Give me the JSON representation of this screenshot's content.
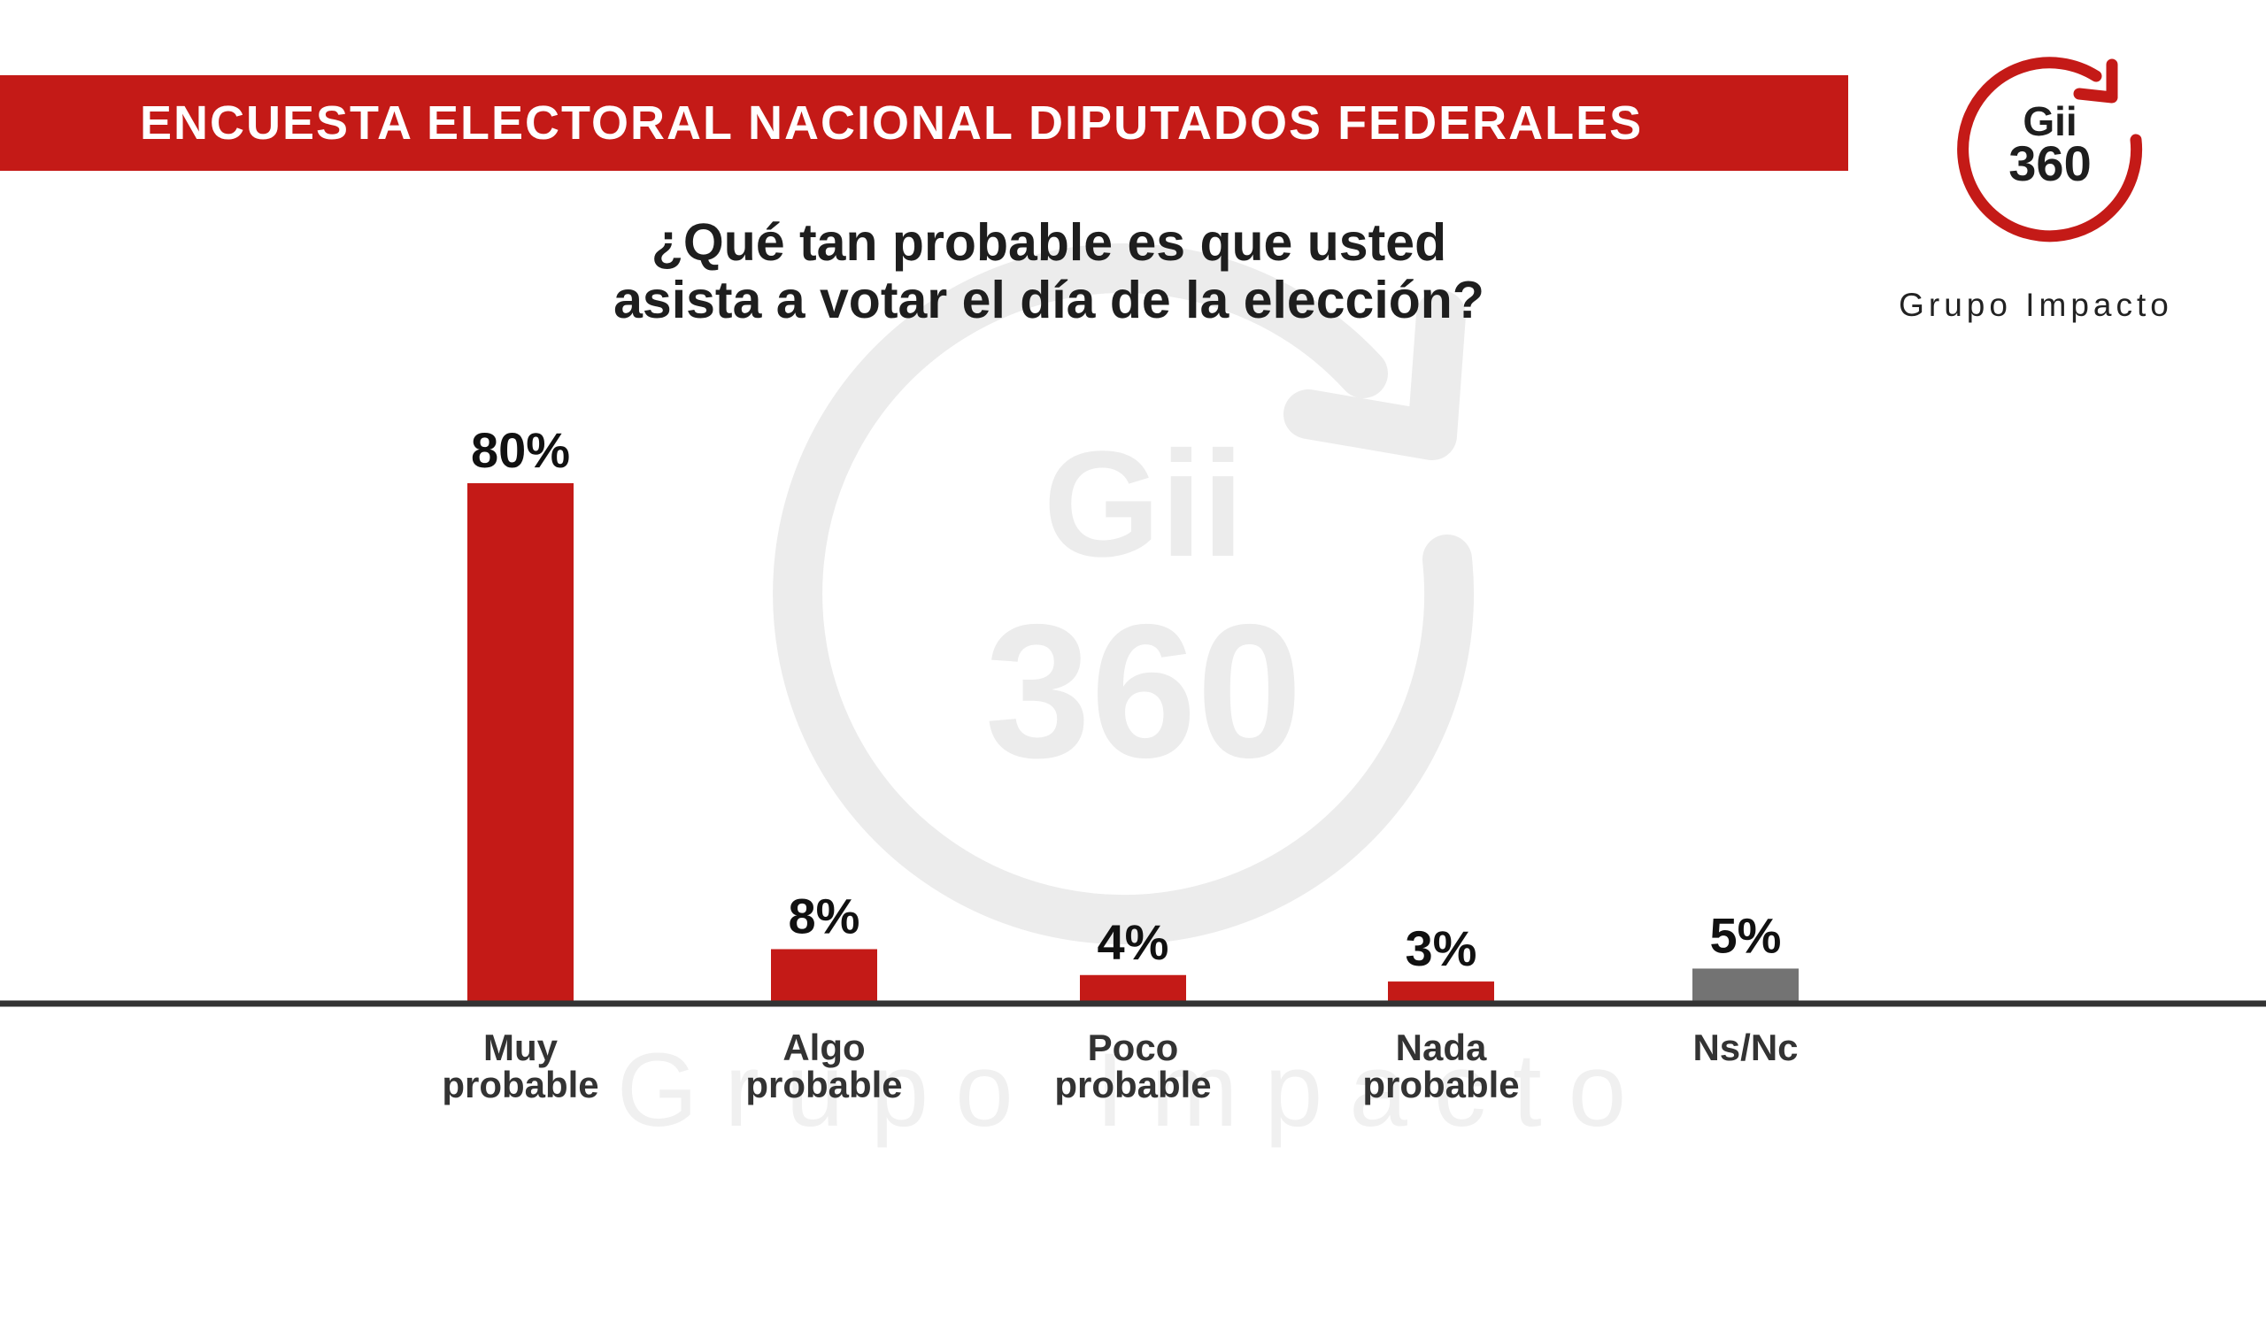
{
  "header": {
    "title": "ENCUESTA ELECTORAL NACIONAL DIPUTADOS FEDERALES"
  },
  "logo": {
    "line1": "Gii",
    "line2": "360",
    "name": "Grupo Impacto"
  },
  "watermark": {
    "line1": "Gii",
    "line2": "360",
    "name": "Grupo Impacto"
  },
  "question": {
    "line1": "¿Qué tan probable es que usted",
    "line2": "asista a votar el día de la elección?"
  },
  "colors": {
    "accent": "#c41a17",
    "neutral_bar": "#737373",
    "axis": "#333333",
    "watermark": "#ececec"
  },
  "chart_data": {
    "type": "bar",
    "categories": [
      [
        "Muy",
        "probable"
      ],
      [
        "Algo",
        "probable"
      ],
      [
        "Poco",
        "probable"
      ],
      [
        "Nada",
        "probable"
      ],
      [
        "Ns/Nc"
      ]
    ],
    "values": [
      80,
      8,
      4,
      3,
      5
    ],
    "value_labels": [
      "80%",
      "8%",
      "4%",
      "3%",
      "5%"
    ],
    "bar_colors": [
      "#c41a17",
      "#c41a17",
      "#c41a17",
      "#c41a17",
      "#737373"
    ],
    "title": "¿Qué tan probable es que usted asista a votar el día de la elección?",
    "xlabel": "",
    "ylabel": "",
    "ylim": [
      0,
      80
    ],
    "grid": false,
    "legend": "none"
  }
}
